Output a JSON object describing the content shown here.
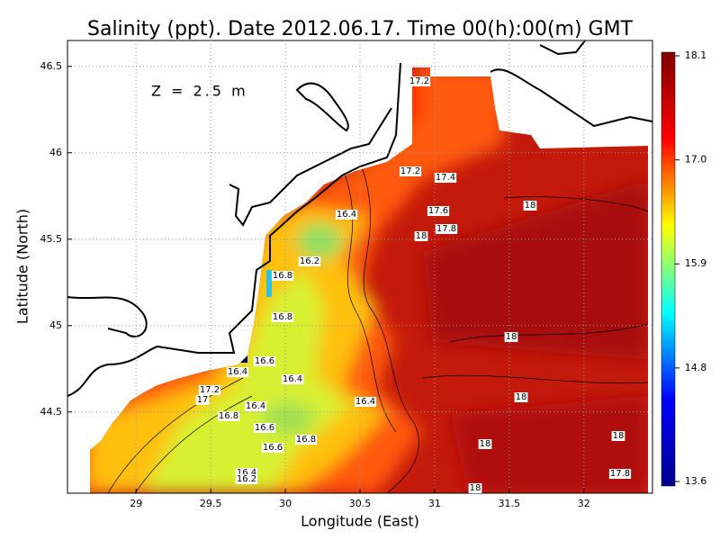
{
  "chart_data": {
    "type": "contour-map",
    "title": "Salinity (ppt). Date 2012.06.17. Time 00(h):00(m) GMT",
    "xlabel": "Longitude (East)",
    "ylabel": "Latitude (North)",
    "annotation": "Z = 2.5 m",
    "xlim": [
      28.54,
      32.46
    ],
    "ylim": [
      44.03,
      46.65
    ],
    "xticks": [
      29,
      29.5,
      30,
      30.5,
      31,
      31.5,
      32
    ],
    "yticks": [
      44.5,
      45,
      45.5,
      46,
      46.5
    ],
    "grid": true,
    "clim": [
      13.6,
      18.1
    ],
    "cticks": [
      13.6,
      14.8,
      15.9,
      {
        "value": 17,
        "label": "17.0"
      },
      18.1
    ],
    "colormap": [
      "#00008f",
      "#0000ff",
      "#00ffff",
      "#ffff00",
      "#ff0000",
      "#800000"
    ],
    "contour_labels": [
      17.2,
      17.2,
      17.4,
      17.6,
      17.8,
      18,
      18,
      16.4,
      16.2,
      16.8,
      16.8,
      16.6,
      16.4,
      16.4,
      17.2,
      17,
      16.4,
      16.4,
      16.8,
      16.6,
      16.6,
      16.8,
      16.4,
      16.2,
      18,
      18,
      18,
      18,
      17.8,
      18
    ]
  }
}
